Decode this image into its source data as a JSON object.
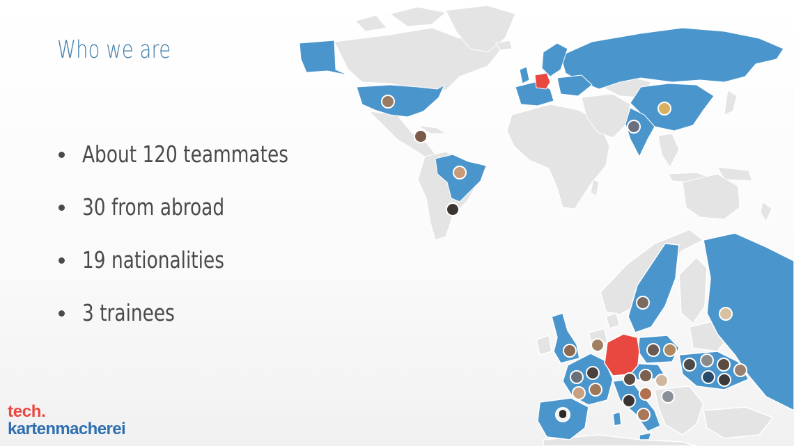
{
  "slide": {
    "title": "Who we are",
    "bullets": [
      "About 120 teammates",
      "30 from abroad",
      "19 nationalities",
      "3 trainees"
    ]
  },
  "logo": {
    "line1": "tech.",
    "line2": "kartenmacherei",
    "line1_color": "#e8483f",
    "line2_color": "#2f6fb0"
  },
  "map": {
    "highlight_color": "#4a96cc",
    "home_color": "#e8483f",
    "land_color": "#e4e4e4",
    "highlighted_countries": [
      "Alaska/USA",
      "USA",
      "Brazil",
      "Russia",
      "China",
      "India",
      "Sweden",
      "UK",
      "Spain",
      "France",
      "Italy",
      "Poland",
      "Ukraine"
    ],
    "home_country": "Germany",
    "avatar_count": 38
  }
}
